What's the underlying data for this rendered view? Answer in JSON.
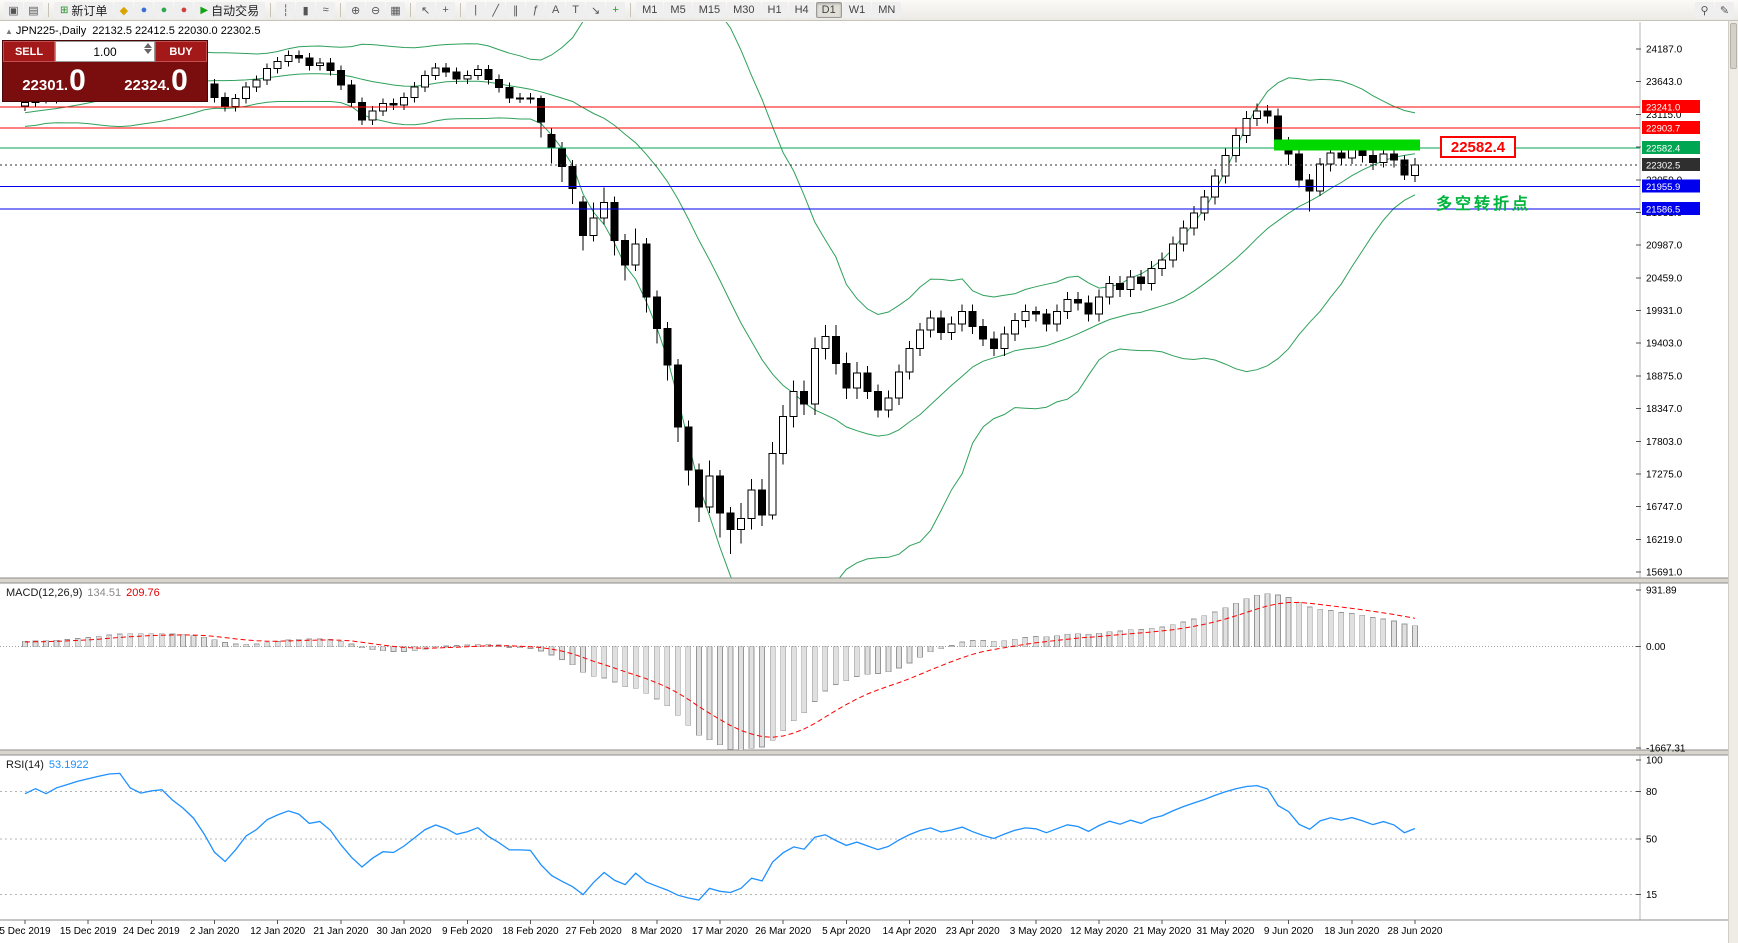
{
  "symbol_header": {
    "title": "JPN225-,Daily",
    "ohlc": "22132.5 22412.5 22030.0 22302.5"
  },
  "trade_widget": {
    "sell_label": "SELL",
    "buy_label": "BUY",
    "lot": "1.00",
    "sell_price_small": "22301.",
    "sell_price_big": "0",
    "buy_price_small": "22324.",
    "buy_price_big": "0"
  },
  "toolbar": {
    "items": [
      {
        "type": "icon",
        "name": "new-chart-icon",
        "glyph": "▣"
      },
      {
        "type": "icon",
        "name": "profiles-icon",
        "glyph": "▤"
      },
      {
        "type": "sep"
      },
      {
        "type": "button",
        "name": "new-order-button",
        "glyph": "⊞",
        "glyph_color": "#1d8a1d",
        "label": "新订单"
      },
      {
        "type": "icon",
        "name": "metaeditor-icon",
        "glyph": "◆",
        "color": "#d9a400"
      },
      {
        "type": "icon",
        "name": "market-watch-icon",
        "glyph": "●",
        "color": "#3a6fd8"
      },
      {
        "type": "icon",
        "name": "navigator-icon",
        "glyph": "●",
        "color": "#2fa84f"
      },
      {
        "type": "icon",
        "name": "terminal-icon",
        "glyph": "●",
        "color": "#d04040"
      },
      {
        "type": "button",
        "name": "autotrading-button",
        "glyph": "▶",
        "glyph_color": "#17a317",
        "label": "自动交易"
      },
      {
        "type": "sep"
      },
      {
        "type": "icon",
        "name": "chart-bars-icon",
        "glyph": "┆"
      },
      {
        "type": "icon",
        "name": "chart-candles-icon",
        "glyph": "▮"
      },
      {
        "type": "icon",
        "name": "chart-line-icon",
        "glyph": "≈"
      },
      {
        "type": "sep"
      },
      {
        "type": "icon",
        "name": "zoom-in-icon",
        "glyph": "⊕"
      },
      {
        "type": "icon",
        "name": "zoom-out-icon",
        "glyph": "⊖"
      },
      {
        "type": "icon",
        "name": "tile-windows-icon",
        "glyph": "▦"
      },
      {
        "type": "sep"
      },
      {
        "type": "icon",
        "name": "cursor-icon",
        "glyph": "↖"
      },
      {
        "type": "icon",
        "name": "crosshair-icon",
        "glyph": "+"
      },
      {
        "type": "sep"
      },
      {
        "type": "icon",
        "name": "vertical-line-icon",
        "glyph": "|"
      },
      {
        "type": "icon",
        "name": "trendline-icon",
        "glyph": "╱"
      },
      {
        "type": "icon",
        "name": "channel-icon",
        "glyph": "∥"
      },
      {
        "type": "icon",
        "name": "fibonacci-icon",
        "glyph": "ƒ"
      },
      {
        "type": "icon",
        "name": "text-icon",
        "glyph": "A"
      },
      {
        "type": "icon",
        "name": "text-label-icon",
        "glyph": "T"
      },
      {
        "type": "icon",
        "name": "arrow-tool-icon",
        "glyph": "↘"
      },
      {
        "type": "icon",
        "name": "indicators-icon",
        "glyph": "+",
        "color": "#17a317"
      },
      {
        "type": "sep"
      },
      {
        "type": "tf",
        "name": "timeframe-m1",
        "label": "M1"
      },
      {
        "type": "tf",
        "name": "timeframe-m5",
        "label": "M5"
      },
      {
        "type": "tf",
        "name": "timeframe-m15",
        "label": "M15"
      },
      {
        "type": "tf",
        "name": "timeframe-m30",
        "label": "M30"
      },
      {
        "type": "tf",
        "name": "timeframe-h1",
        "label": "H1"
      },
      {
        "type": "tf",
        "name": "timeframe-h4",
        "label": "H4"
      },
      {
        "type": "tf",
        "name": "timeframe-d1",
        "label": "D1",
        "active": true
      },
      {
        "type": "tf",
        "name": "timeframe-w1",
        "label": "W1"
      },
      {
        "type": "tf",
        "name": "timeframe-mn",
        "label": "MN"
      },
      {
        "type": "spacer"
      },
      {
        "type": "icon",
        "name": "search-icon",
        "glyph": "⚲"
      },
      {
        "type": "icon",
        "name": "edit-icon",
        "glyph": "✎"
      }
    ]
  },
  "chart_data": {
    "type": "candlestick",
    "symbol": "JPN225-",
    "timeframe": "Daily",
    "x_labels": [
      "5 Dec 2019",
      "15 Dec 2019",
      "24 Dec 2019",
      "2 Jan 2020",
      "12 Jan 2020",
      "21 Jan 2020",
      "30 Jan 2020",
      "9 Feb 2020",
      "18 Feb 2020",
      "27 Feb 2020",
      "8 Mar 2020",
      "17 Mar 2020",
      "26 Mar 2020",
      "5 Apr 2020",
      "14 Apr 2020",
      "23 Apr 2020",
      "3 May 2020",
      "12 May 2020",
      "21 May 2020",
      "31 May 2020",
      "9 Jun 2020",
      "18 Jun 2020",
      "28 Jun 2020"
    ],
    "label_step": 6,
    "y_axis": {
      "max": 24187,
      "min": 15691,
      "ticks": [
        "24187.0",
        "23643.0",
        "23115.0",
        "22587.0",
        "22059.0",
        "21531.0",
        "20987.0",
        "20459.0",
        "19931.0",
        "19403.0",
        "18875.0",
        "18347.0",
        "17803.0",
        "17275.0",
        "16747.0",
        "16219.0",
        "15691.0"
      ]
    },
    "pre_closes": [
      22920,
      22960,
      22940,
      23000,
      23050,
      23020,
      23080,
      23120,
      23100,
      23150,
      23180,
      23160,
      23200,
      23240,
      23220,
      23260,
      23280,
      23250,
      23270,
      23260
    ],
    "candles": [
      [
        23260,
        23400,
        23180,
        23320
      ],
      [
        23320,
        23480,
        23240,
        23400
      ],
      [
        23400,
        23480,
        23300,
        23380
      ],
      [
        23380,
        23560,
        23300,
        23480
      ],
      [
        23480,
        23630,
        23400,
        23550
      ],
      [
        23550,
        23720,
        23470,
        23640
      ],
      [
        23640,
        23800,
        23560,
        23720
      ],
      [
        23720,
        23900,
        23640,
        23820
      ],
      [
        23820,
        24010,
        23740,
        23930
      ],
      [
        23930,
        24040,
        23850,
        23960
      ],
      [
        23960,
        24040,
        23800,
        23880
      ],
      [
        23880,
        23960,
        23770,
        23850
      ],
      [
        23850,
        23980,
        23770,
        23900
      ],
      [
        23900,
        24010,
        23820,
        23930
      ],
      [
        23930,
        24010,
        23790,
        23870
      ],
      [
        23870,
        23950,
        23740,
        23820
      ],
      [
        23820,
        23900,
        23670,
        23750
      ],
      [
        23750,
        23830,
        23540,
        23620
      ],
      [
        23620,
        23700,
        23320,
        23400
      ],
      [
        23400,
        23480,
        23170,
        23250
      ],
      [
        23250,
        23460,
        23170,
        23380
      ],
      [
        23380,
        23650,
        23300,
        23570
      ],
      [
        23570,
        23760,
        23490,
        23680
      ],
      [
        23680,
        23950,
        23600,
        23870
      ],
      [
        23870,
        24060,
        23790,
        23980
      ],
      [
        23980,
        24160,
        23900,
        24080
      ],
      [
        24080,
        24160,
        23960,
        24040
      ],
      [
        24040,
        24120,
        23840,
        23920
      ],
      [
        23920,
        24040,
        23840,
        23960
      ],
      [
        23960,
        24040,
        23760,
        23840
      ],
      [
        23840,
        23920,
        23520,
        23600
      ],
      [
        23600,
        23680,
        23240,
        23320
      ],
      [
        23320,
        23400,
        22950,
        23030
      ],
      [
        23030,
        23260,
        22950,
        23180
      ],
      [
        23180,
        23380,
        23100,
        23300
      ],
      [
        23300,
        23380,
        23200,
        23280
      ],
      [
        23280,
        23480,
        23200,
        23400
      ],
      [
        23400,
        23650,
        23320,
        23570
      ],
      [
        23570,
        23840,
        23490,
        23760
      ],
      [
        23760,
        23960,
        23680,
        23880
      ],
      [
        23880,
        23960,
        23730,
        23810
      ],
      [
        23810,
        23890,
        23620,
        23700
      ],
      [
        23700,
        23840,
        23620,
        23760
      ],
      [
        23760,
        23930,
        23680,
        23850
      ],
      [
        23850,
        23930,
        23610,
        23690
      ],
      [
        23690,
        23770,
        23480,
        23560
      ],
      [
        23560,
        23640,
        23310,
        23390
      ],
      [
        23390,
        23470,
        23310,
        23390
      ],
      [
        23390,
        23470,
        23300,
        23380
      ],
      [
        23380,
        23430,
        22750,
        23000
      ],
      [
        22800,
        22900,
        22330,
        22580
      ],
      [
        22580,
        22680,
        22030,
        22280
      ],
      [
        22280,
        22380,
        21670,
        21920
      ],
      [
        21700,
        21800,
        20910,
        21160
      ],
      [
        21160,
        21690,
        21060,
        21440
      ],
      [
        21440,
        21940,
        21340,
        21690
      ],
      [
        21690,
        21790,
        20830,
        21080
      ],
      [
        21080,
        21180,
        20430,
        20680
      ],
      [
        20680,
        21270,
        20580,
        21020
      ],
      [
        21020,
        21120,
        19910,
        20160
      ],
      [
        20160,
        20260,
        19400,
        19650
      ],
      [
        19650,
        19750,
        18800,
        19050
      ],
      [
        19050,
        19150,
        17800,
        18050
      ],
      [
        18050,
        18150,
        17100,
        17350
      ],
      [
        17350,
        17450,
        16500,
        16750
      ],
      [
        16750,
        17500,
        16650,
        17250
      ],
      [
        17250,
        17350,
        16250,
        16650
      ],
      [
        16650,
        16750,
        15980,
        16380
      ],
      [
        16380,
        16810,
        16150,
        16560
      ],
      [
        16560,
        17200,
        16380,
        17020
      ],
      [
        17020,
        17200,
        16440,
        16620
      ],
      [
        16620,
        17800,
        16540,
        17620
      ],
      [
        17620,
        18400,
        17440,
        18220
      ],
      [
        18220,
        18800,
        18040,
        18620
      ],
      [
        18620,
        18800,
        18240,
        18420
      ],
      [
        18420,
        19500,
        18240,
        19320
      ],
      [
        19320,
        19700,
        19140,
        19520
      ],
      [
        19520,
        19700,
        18900,
        19080
      ],
      [
        19080,
        19260,
        18500,
        18680
      ],
      [
        18680,
        19100,
        18500,
        18920
      ],
      [
        18920,
        19040,
        18500,
        18620
      ],
      [
        18620,
        18740,
        18200,
        18320
      ],
      [
        18320,
        18640,
        18200,
        18520
      ],
      [
        18520,
        19060,
        18400,
        18940
      ],
      [
        18940,
        19440,
        18820,
        19320
      ],
      [
        19320,
        19740,
        19200,
        19620
      ],
      [
        19620,
        19940,
        19500,
        19820
      ],
      [
        19820,
        19940,
        19460,
        19580
      ],
      [
        19580,
        19840,
        19460,
        19720
      ],
      [
        19720,
        20040,
        19600,
        19920
      ],
      [
        19920,
        20040,
        19560,
        19680
      ],
      [
        19680,
        19800,
        19360,
        19480
      ],
      [
        19480,
        19600,
        19200,
        19320
      ],
      [
        19320,
        19680,
        19200,
        19560
      ],
      [
        19560,
        19900,
        19440,
        19780
      ],
      [
        19780,
        20040,
        19660,
        19920
      ],
      [
        19920,
        20000,
        19760,
        19880
      ],
      [
        19880,
        19960,
        19600,
        19720
      ],
      [
        19720,
        20040,
        19600,
        19920
      ],
      [
        19920,
        20240,
        19800,
        20120
      ],
      [
        20120,
        20240,
        19940,
        20060
      ],
      [
        20060,
        20180,
        19760,
        19880
      ],
      [
        19880,
        20280,
        19760,
        20160
      ],
      [
        20160,
        20500,
        20040,
        20380
      ],
      [
        20380,
        20500,
        20160,
        20280
      ],
      [
        20280,
        20600,
        20160,
        20480
      ],
      [
        20480,
        20600,
        20260,
        20380
      ],
      [
        20380,
        20740,
        20260,
        20620
      ],
      [
        20620,
        20880,
        20500,
        20760
      ],
      [
        20760,
        21140,
        20640,
        21020
      ],
      [
        21020,
        21400,
        20900,
        21280
      ],
      [
        21280,
        21640,
        21160,
        21520
      ],
      [
        21520,
        21900,
        21400,
        21780
      ],
      [
        21780,
        22240,
        21660,
        22120
      ],
      [
        22120,
        22580,
        22000,
        22460
      ],
      [
        22460,
        22900,
        22340,
        22780
      ],
      [
        22780,
        23180,
        22660,
        23060
      ],
      [
        23060,
        23300,
        22940,
        23180
      ],
      [
        23180,
        23280,
        22980,
        23100
      ],
      [
        23100,
        23220,
        22540,
        22660
      ],
      [
        22660,
        22760,
        22300,
        22480
      ],
      [
        22480,
        22560,
        21940,
        22060
      ],
      [
        22060,
        22160,
        21550,
        21880
      ],
      [
        21880,
        22420,
        21800,
        22320
      ],
      [
        22320,
        22620,
        22200,
        22500
      ],
      [
        22500,
        22580,
        22300,
        22420
      ],
      [
        22420,
        22660,
        22320,
        22560
      ],
      [
        22560,
        22620,
        22340,
        22460
      ],
      [
        22460,
        22560,
        22220,
        22340
      ],
      [
        22340,
        22600,
        22260,
        22480
      ],
      [
        22480,
        22560,
        22260,
        22380
      ],
      [
        22380,
        22460,
        22060,
        22140
      ],
      [
        22132.5,
        22412.5,
        22030,
        22302.5
      ]
    ],
    "hlines": [
      {
        "price": 23241.0,
        "label": "23241.0",
        "color": "#ff0000"
      },
      {
        "price": 22903.7,
        "label": "22903.7",
        "color": "#ff0000"
      },
      {
        "price": 22582.4,
        "label": "22582.4",
        "color": "#00a651"
      },
      {
        "price": 21955.9,
        "label": "21955.9",
        "color": "#0000ee"
      },
      {
        "price": 21586.5,
        "label": "21586.5",
        "color": "#0000ee"
      }
    ],
    "current_price": {
      "value": 22302.5,
      "label": "22302.5",
      "color": "#2f2f2f"
    },
    "rectangle": {
      "from_index": 119,
      "to_index": 132,
      "price_top": 22720,
      "price_bottom": 22540,
      "color": "#00d800"
    },
    "bollinger": {
      "period": 20,
      "deviation": 2,
      "color": "#2fa05a"
    },
    "macd": {
      "label": "MACD(12,26,9)",
      "value_main": "134.51",
      "value_signal": "209.76",
      "fast": 12,
      "slow": 26,
      "signal": 9,
      "scale_max": 931.89,
      "scale_min": -1667.31,
      "scale_labels": [
        {
          "label": "931.89",
          "value": 931.89
        },
        {
          "label": "0.00",
          "value": 0
        },
        {
          "label": "-1667.31",
          "value": -1667.31
        }
      ],
      "histogram_color": "#e0e0e0",
      "histogram_stroke": "#969696",
      "signal_color": "#ff0000"
    },
    "rsi": {
      "label": "RSI(14)",
      "value": "53.1922",
      "period": 14,
      "color": "#1E90FF",
      "levels": [
        80,
        50,
        15
      ],
      "scale_labels": [
        {
          "label": "100",
          "value": 100
        },
        {
          "label": "80",
          "value": 80
        },
        {
          "label": "50",
          "value": 50
        },
        {
          "label": "15",
          "value": 15
        }
      ]
    },
    "annotations": {
      "price_callout": "22582.4",
      "cn_text": "多空转折点"
    }
  }
}
